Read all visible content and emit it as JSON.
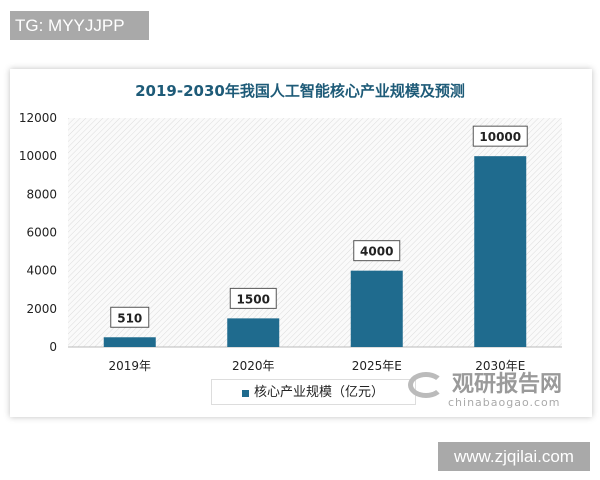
{
  "watermark_top": "TG: MYYJJPP",
  "watermark_bottom": "www.zjqilai.com",
  "source_logo": {
    "cn": "观研报告网",
    "en": "chinabaogao.com"
  },
  "chart_data": {
    "type": "bar",
    "title": "2019-2030年我国人工智能核心产业规模及预测",
    "categories": [
      "2019年",
      "2020年",
      "2025年E",
      "2030年E"
    ],
    "series": [
      {
        "name": "核心产业规模（亿元）",
        "values": [
          510,
          1500,
          4000,
          10000
        ],
        "color": "#1f6b8e"
      }
    ],
    "data_labels": [
      "510",
      "1500",
      "4000",
      "10000"
    ],
    "yticks": [
      "0",
      "2000",
      "4000",
      "6000",
      "8000",
      "10000",
      "12000"
    ],
    "ylim": [
      0,
      12000
    ],
    "legend": "bottom-left",
    "grid": false
  }
}
